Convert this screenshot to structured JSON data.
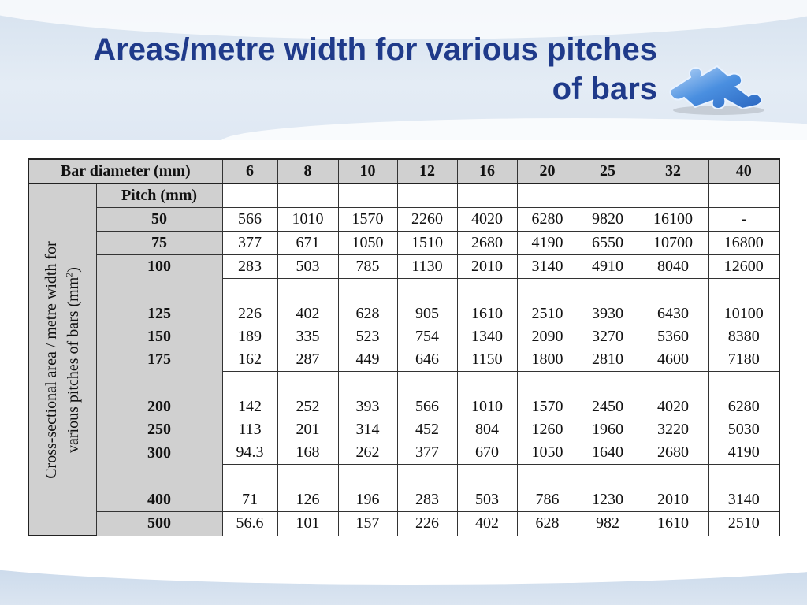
{
  "title": "Areas/metre width for various pitches of bars",
  "title_lines": [
    "Areas/metre width for various pitches",
    "of bars"
  ],
  "decoration": {
    "icon": "puzzle-piece-icon",
    "color": "#4a8fe0"
  },
  "colors": {
    "title": "#1f3a8a",
    "header_bg": "#d0d0d0",
    "band": "#d6e2ef"
  },
  "table": {
    "corner_label": "Bar diameter (mm)",
    "diameters": [
      "6",
      "8",
      "10",
      "12",
      "16",
      "20",
      "25",
      "32",
      "40"
    ],
    "pitch_header": "Pitch (mm)",
    "row_label_line1": "Cross-sectional area / metre width for",
    "row_label_line2": "various pitches of bars (mm",
    "row_label_sup": "2",
    "row_label_end": ")",
    "rows": [
      {
        "pitch": "50",
        "values": [
          "566",
          "1010",
          "1570",
          "2260",
          "4020",
          "6280",
          "9820",
          "16100",
          "-"
        ]
      },
      {
        "pitch": "75",
        "values": [
          "377",
          "671",
          "1050",
          "1510",
          "2680",
          "4190",
          "6550",
          "10700",
          "16800"
        ]
      },
      {
        "pitch": "100",
        "values": [
          "283",
          "503",
          "785",
          "1130",
          "2010",
          "3140",
          "4910",
          "8040",
          "12600"
        ]
      },
      {
        "pitch": "",
        "values": [
          "",
          "",
          "",
          "",
          "",
          "",
          "",
          "",
          ""
        ]
      },
      {
        "pitch": "125",
        "values": [
          "226",
          "402",
          "628",
          "905",
          "1610",
          "2510",
          "3930",
          "6430",
          "10100"
        ]
      },
      {
        "pitch": "150",
        "values": [
          "189",
          "335",
          "523",
          "754",
          "1340",
          "2090",
          "3270",
          "5360",
          "8380"
        ]
      },
      {
        "pitch": "175",
        "values": [
          "162",
          "287",
          "449",
          "646",
          "1150",
          "1800",
          "2810",
          "4600",
          "7180"
        ]
      },
      {
        "pitch": "",
        "values": [
          "",
          "",
          "",
          "",
          "",
          "",
          "",
          "",
          ""
        ]
      },
      {
        "pitch": "200",
        "values": [
          "142",
          "252",
          "393",
          "566",
          "1010",
          "1570",
          "2450",
          "4020",
          "6280"
        ]
      },
      {
        "pitch": "250",
        "values": [
          "113",
          "201",
          "314",
          "452",
          "804",
          "1260",
          "1960",
          "3220",
          "5030"
        ]
      },
      {
        "pitch": "300",
        "values": [
          "94.3",
          "168",
          "262",
          "377",
          "670",
          "1050",
          "1640",
          "2680",
          "4190"
        ]
      },
      {
        "pitch": "",
        "values": [
          "",
          "",
          "",
          "",
          "",
          "",
          "",
          "",
          ""
        ]
      },
      {
        "pitch": "400",
        "values": [
          "71",
          "126",
          "196",
          "283",
          "503",
          "786",
          "1230",
          "2010",
          "3140"
        ]
      },
      {
        "pitch": "500",
        "values": [
          "56.6",
          "101",
          "157",
          "226",
          "402",
          "628",
          "982",
          "1610",
          "2510"
        ]
      }
    ]
  }
}
